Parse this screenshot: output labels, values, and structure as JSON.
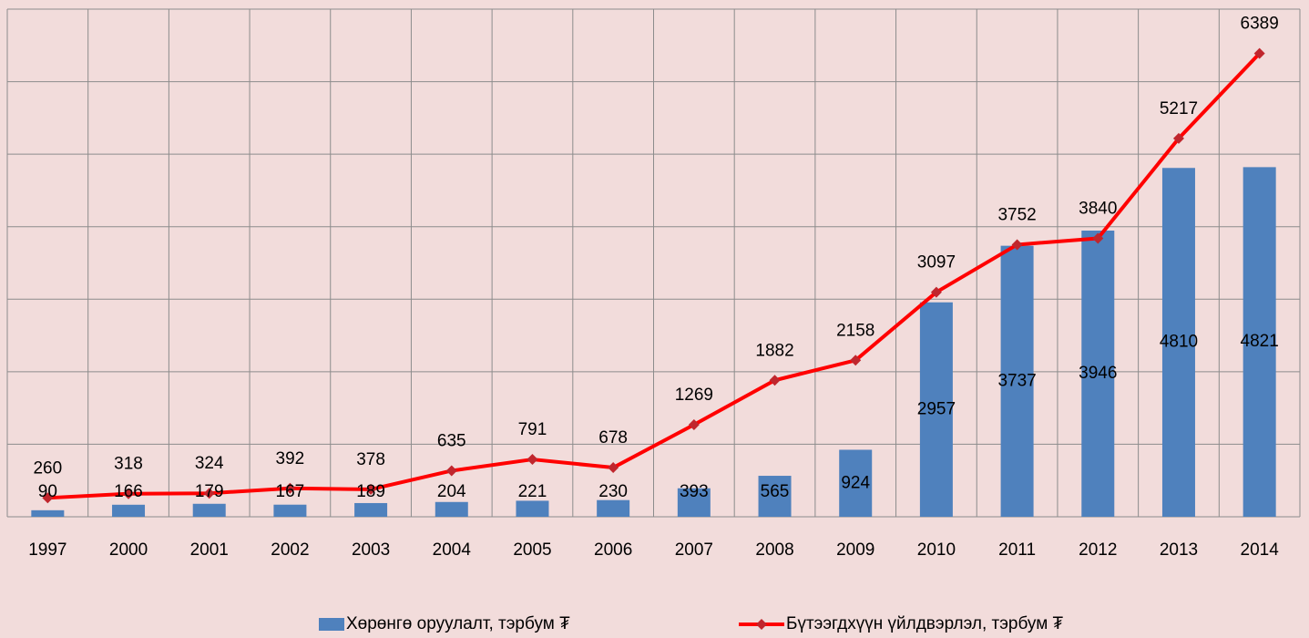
{
  "chart_data": {
    "type": "bar-line",
    "categories": [
      "1997",
      "2000",
      "2001",
      "2002",
      "2003",
      "2004",
      "2005",
      "2006",
      "2007",
      "2008",
      "2009",
      "2010",
      "2011",
      "2012",
      "2013",
      "2014"
    ],
    "series": [
      {
        "name": "Хөрөнгө оруулалт, тэрбум ₮",
        "type": "bar",
        "color": "#4f81bd",
        "values": [
          90,
          166,
          179,
          167,
          189,
          204,
          221,
          230,
          393,
          565,
          924,
          2957,
          3737,
          3946,
          4810,
          4821
        ]
      },
      {
        "name": "Бүтээгдхүүн үйлдвэрлэл, тэрбум ₮",
        "type": "line",
        "color": "#ff0000",
        "marker_color": "#c0262d",
        "values": [
          260,
          318,
          324,
          392,
          378,
          635,
          791,
          678,
          1269,
          1882,
          2158,
          3097,
          3752,
          3840,
          5217,
          6389
        ]
      }
    ],
    "ylim": [
      0,
      7000
    ],
    "yticks": [
      0,
      1000,
      2000,
      3000,
      4000,
      5000,
      6000,
      7000
    ],
    "grid": true,
    "legend": "bottom"
  }
}
